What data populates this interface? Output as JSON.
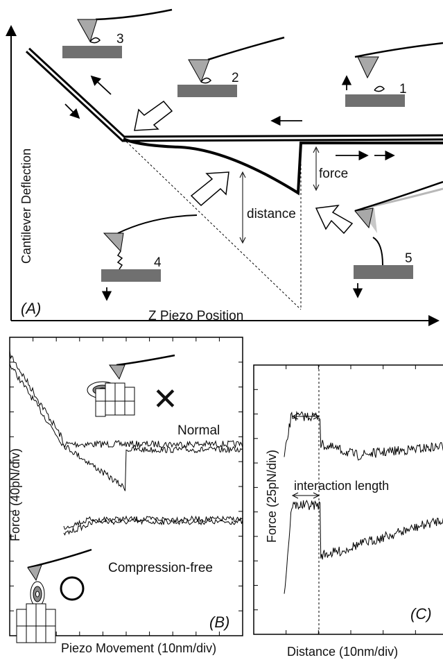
{
  "panel_a": {
    "label": "(A)",
    "ylabel": "Cantilever Deflection",
    "xlabel": "Z Piezo Position",
    "force_label": "force",
    "distance_label": "distance",
    "steps": [
      "1",
      "2",
      "3",
      "4",
      "5"
    ]
  },
  "panel_b": {
    "label": "(B)",
    "ylabel": "Force (40pN/div)",
    "xlabel": "Piezo Movement (10nm/div)",
    "normal_label": "Normal",
    "compression_label": "Compression-free",
    "cross_mark": "✕",
    "circle_mark": "○"
  },
  "panel_c": {
    "label": "(C)",
    "ylabel": "Force (25pN/div)",
    "xlabel": "Distance (10nm/div)",
    "interaction_label": "interaction length"
  },
  "colors": {
    "substrate": "#707070",
    "tip": "#a8a8a8",
    "line": "#000000",
    "ghost": "#b8b8b8"
  }
}
